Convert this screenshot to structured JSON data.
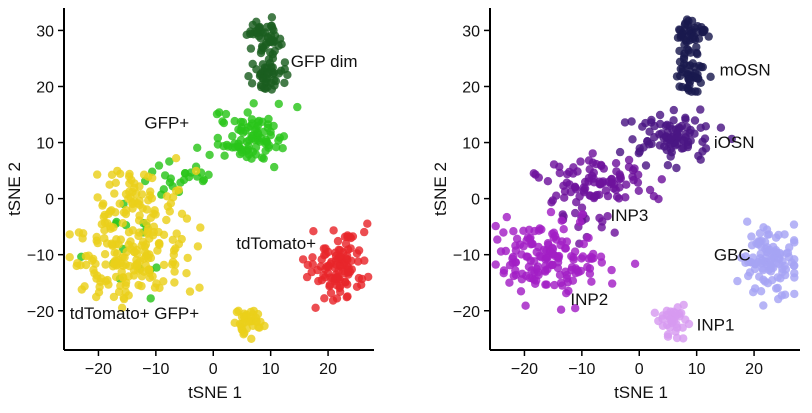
{
  "chart_data": [
    {
      "type": "scatter",
      "xlabel": "tSNE 1",
      "ylabel": "tSNE 2",
      "xlim": [
        -26,
        28
      ],
      "ylim": [
        -27,
        34
      ],
      "xticks": [
        -20,
        -10,
        0,
        10,
        20
      ],
      "xtick_labels": [
        "−20",
        "−10",
        "0",
        "10",
        "20"
      ],
      "yticks": [
        -20,
        -10,
        0,
        10,
        20,
        30
      ],
      "ytick_labels": [
        "−20",
        "−10",
        "0",
        "10",
        "20",
        "30"
      ],
      "grid": false,
      "series": [
        {
          "name": "GFP dim",
          "color": "#1b5e20",
          "clusters": [
            {
              "cx": 9,
              "cy": 29,
              "sx": 1.4,
              "sy": 1.6,
              "n": 45
            },
            {
              "cx": 9,
              "cy": 22,
              "sx": 1.5,
              "sy": 1.8,
              "n": 45
            }
          ]
        },
        {
          "name": "GFP+",
          "color": "#29c41a",
          "clusters": [
            {
              "cx": 6,
              "cy": 11,
              "sx": 3.2,
              "sy": 2.2,
              "n": 90
            },
            {
              "cx": -5,
              "cy": 4,
              "sx": 3.5,
              "sy": 1.6,
              "n": 22
            },
            {
              "cx": -14,
              "cy": -9,
              "sx": 5,
              "sy": 4.5,
              "n": 16
            }
          ]
        },
        {
          "name": "tdTomato+",
          "color": "#e8262b",
          "clusters": [
            {
              "cx": 22,
              "cy": -12,
              "sx": 2.4,
              "sy": 3.2,
              "n": 105
            }
          ]
        },
        {
          "name": "tdTomato+ GFP+",
          "color": "#ead01a",
          "clusters": [
            {
              "cx": -15,
              "cy": -10,
              "sx": 5,
              "sy": 3.6,
              "n": 170
            },
            {
              "cx": -13,
              "cy": 1,
              "sx": 4,
              "sy": 3,
              "n": 60
            },
            {
              "cx": 6,
              "cy": -22,
              "sx": 1.4,
              "sy": 1.4,
              "n": 35
            }
          ]
        }
      ],
      "annotations": [
        {
          "text": "GFP dim",
          "x": 13.5,
          "y": 23.5
        },
        {
          "text": "GFP+",
          "x": -12,
          "y": 12.5
        },
        {
          "text": "tdTomato+",
          "x": 4,
          "y": -9
        },
        {
          "text": "tdTomato+ GFP+",
          "x": -25,
          "y": -21.5
        }
      ]
    },
    {
      "type": "scatter",
      "xlabel": "tSNE 1",
      "ylabel": "tSNE 2",
      "xlim": [
        -26,
        28
      ],
      "ylim": [
        -27,
        34
      ],
      "xticks": [
        -20,
        -10,
        0,
        10,
        20
      ],
      "xtick_labels": [
        "−20",
        "−10",
        "0",
        "10",
        "20"
      ],
      "yticks": [
        -20,
        -10,
        0,
        10,
        20,
        30
      ],
      "ytick_labels": [
        "−20",
        "−10",
        "0",
        "10",
        "20",
        "30"
      ],
      "grid": false,
      "series": [
        {
          "name": "mOSN",
          "color": "#1a1a4e",
          "clusters": [
            {
              "cx": 9,
              "cy": 29,
              "sx": 1.4,
              "sy": 1.6,
              "n": 45
            },
            {
              "cx": 9,
              "cy": 22,
              "sx": 1.5,
              "sy": 1.8,
              "n": 45
            }
          ]
        },
        {
          "name": "iOSN",
          "color": "#4a1684",
          "clusters": [
            {
              "cx": 6,
              "cy": 11,
              "sx": 3.2,
              "sy": 2.2,
              "n": 90
            }
          ]
        },
        {
          "name": "INP3",
          "color": "#6e129c",
          "clusters": [
            {
              "cx": -8,
              "cy": 3,
              "sx": 5,
              "sy": 2.2,
              "n": 90
            },
            {
              "cx": -10,
              "cy": -3,
              "sx": 2.5,
              "sy": 2.5,
              "n": 20
            }
          ]
        },
        {
          "name": "INP2",
          "color": "#a21fc4",
          "clusters": [
            {
              "cx": -16,
              "cy": -11,
              "sx": 4.8,
              "sy": 3.4,
              "n": 150
            }
          ]
        },
        {
          "name": "INP1",
          "color": "#d79af0",
          "clusters": [
            {
              "cx": 6,
              "cy": -22,
              "sx": 1.4,
              "sy": 1.4,
              "n": 35
            }
          ]
        },
        {
          "name": "GBC",
          "color": "#a6a4f4",
          "clusters": [
            {
              "cx": 23,
              "cy": -11,
              "sx": 2.4,
              "sy": 3.2,
              "n": 105
            }
          ]
        }
      ],
      "annotations": [
        {
          "text": "mOSN",
          "x": 14,
          "y": 22
        },
        {
          "text": "iOSN",
          "x": 13,
          "y": 9
        },
        {
          "text": "INP3",
          "x": -5,
          "y": -4
        },
        {
          "text": "GBC",
          "x": 13,
          "y": -11
        },
        {
          "text": "INP2",
          "x": -12,
          "y": -19
        },
        {
          "text": "INP1",
          "x": 10,
          "y": -23.5
        }
      ]
    }
  ]
}
